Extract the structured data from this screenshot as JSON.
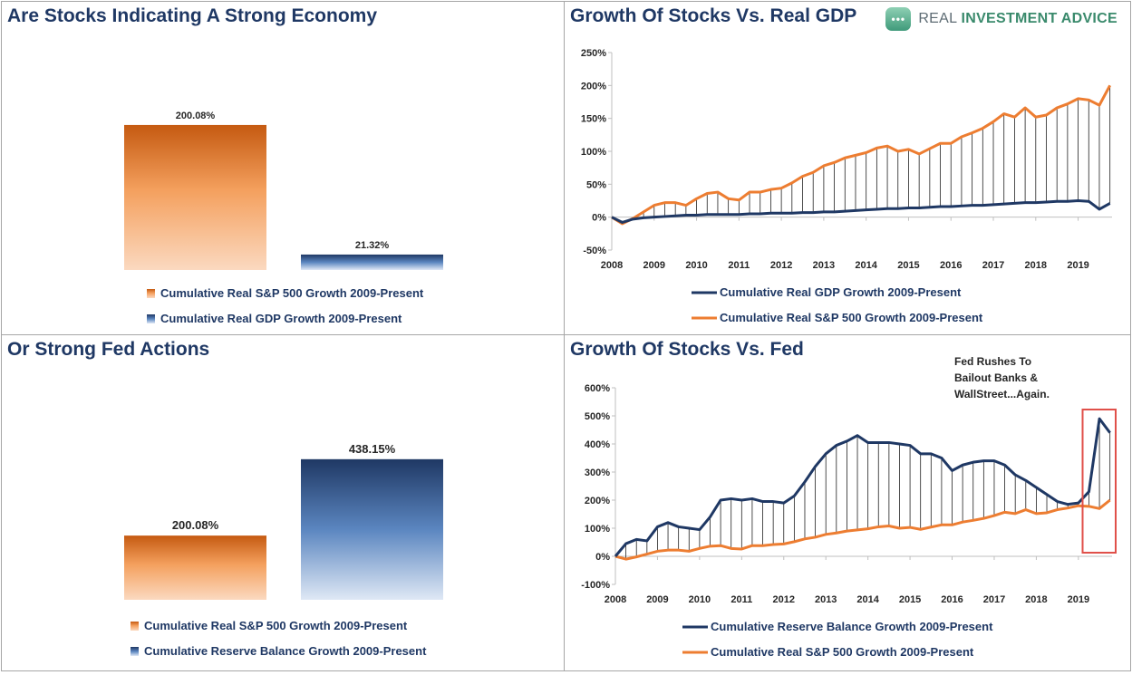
{
  "brand": {
    "word1": "REAL ",
    "word2": "INVESTMENT ADVICE",
    "icon": "chat-bubble-icon"
  },
  "colors": {
    "orange": "#ed7d31",
    "navy": "#1f3864",
    "annotation_box": "#e0504a"
  },
  "chart_data": [
    {
      "type": "bar",
      "title": "Are Stocks Indicating A Strong Economy",
      "categories": [
        "Cumulative Real S&P 500 Growth 2009-Present",
        "Cumulative Real GDP Growth 2009-Present"
      ],
      "values": [
        200.08,
        21.32
      ],
      "data_labels": [
        "200.08%",
        "21.32%"
      ],
      "legend": [
        "Cumulative Real S&P 500 Growth 2009-Present",
        "Cumulative Real GDP Growth 2009-Present"
      ],
      "legend_position": "bottom",
      "ylim": [
        0,
        220
      ]
    },
    {
      "type": "line",
      "title": "Growth Of Stocks Vs. Real GDP",
      "xlim": [
        2008,
        2019.8
      ],
      "ylim": [
        -50,
        250
      ],
      "yticks": [
        "-50%",
        "0%",
        "50%",
        "100%",
        "150%",
        "200%",
        "250%"
      ],
      "xticks": [
        "2008",
        "2009",
        "2010",
        "2011",
        "2012",
        "2013",
        "2014",
        "2015",
        "2016",
        "2017",
        "2018",
        "2019"
      ],
      "legend": [
        "Cumulative Real GDP Growth 2009-Present",
        "Cumulative Real S&P 500 Growth 2009-Present"
      ],
      "legend_position": "bottom",
      "x": [
        2008.0,
        2008.25,
        2008.5,
        2008.75,
        2009.0,
        2009.25,
        2009.5,
        2009.75,
        2010.0,
        2010.25,
        2010.5,
        2010.75,
        2011.0,
        2011.25,
        2011.5,
        2011.75,
        2012.0,
        2012.25,
        2012.5,
        2012.75,
        2013.0,
        2013.25,
        2013.5,
        2013.75,
        2014.0,
        2014.25,
        2014.5,
        2014.75,
        2015.0,
        2015.25,
        2015.5,
        2015.75,
        2016.0,
        2016.25,
        2016.5,
        2016.75,
        2017.0,
        2017.25,
        2017.5,
        2017.75,
        2018.0,
        2018.25,
        2018.5,
        2018.75,
        2019.0,
        2019.25,
        2019.5,
        2019.75
      ],
      "series": [
        {
          "values": [
            0,
            -8,
            -3,
            -1,
            0,
            1,
            2,
            3,
            3,
            4,
            4,
            4,
            4,
            5,
            5,
            6,
            6,
            6,
            7,
            7,
            8,
            8,
            9,
            10,
            11,
            12,
            13,
            13,
            14,
            14,
            15,
            16,
            16,
            17,
            18,
            18,
            19,
            20,
            21,
            22,
            22,
            23,
            24,
            24,
            25,
            24,
            12,
            21
          ]
        },
        {
          "values": [
            0,
            -10,
            -2,
            8,
            18,
            22,
            22,
            18,
            28,
            36,
            38,
            28,
            26,
            38,
            38,
            42,
            44,
            52,
            62,
            68,
            78,
            83,
            90,
            94,
            98,
            105,
            108,
            100,
            103,
            96,
            104,
            112,
            112,
            122,
            128,
            135,
            145,
            157,
            152,
            166,
            152,
            155,
            166,
            172,
            180,
            178,
            170,
            200
          ]
        }
      ]
    },
    {
      "type": "bar",
      "title": "Or Strong Fed Actions",
      "categories": [
        "Cumulative Real S&P 500 Growth 2009-Present",
        "Cumulative Reserve Balance Growth 2009-Present"
      ],
      "values": [
        200.08,
        438.15
      ],
      "data_labels": [
        "200.08%",
        "438.15%"
      ],
      "legend": [
        "Cumulative Real S&P 500 Growth 2009-Present",
        "Cumulative Reserve Balance Growth 2009-Present"
      ],
      "legend_position": "bottom",
      "ylim": [
        0,
        480
      ]
    },
    {
      "type": "line",
      "title": "Growth Of Stocks Vs. Fed",
      "xlim": [
        2008,
        2019.8
      ],
      "ylim": [
        -100,
        600
      ],
      "yticks": [
        "-100%",
        "0%",
        "100%",
        "200%",
        "300%",
        "400%",
        "500%",
        "600%"
      ],
      "xticks": [
        "2008",
        "2009",
        "2010",
        "2011",
        "2012",
        "2013",
        "2014",
        "2015",
        "2016",
        "2017",
        "2018",
        "2019"
      ],
      "legend": [
        "Cumulative Reserve Balance Growth 2009-Present",
        "Cumulative Real S&P 500 Growth 2009-Present"
      ],
      "legend_position": "bottom",
      "annotation": {
        "lines": [
          "Fed Rushes To",
          "Bailout Banks &",
          "WallStreet...Again."
        ],
        "box_x": [
          2019.1,
          2019.8
        ]
      },
      "x": [
        2008.0,
        2008.25,
        2008.5,
        2008.75,
        2009.0,
        2009.25,
        2009.5,
        2009.75,
        2010.0,
        2010.25,
        2010.5,
        2010.75,
        2011.0,
        2011.25,
        2011.5,
        2011.75,
        2012.0,
        2012.25,
        2012.5,
        2012.75,
        2013.0,
        2013.25,
        2013.5,
        2013.75,
        2014.0,
        2014.25,
        2014.5,
        2014.75,
        2015.0,
        2015.25,
        2015.5,
        2015.75,
        2016.0,
        2016.25,
        2016.5,
        2016.75,
        2017.0,
        2017.25,
        2017.5,
        2017.75,
        2018.0,
        2018.25,
        2018.5,
        2018.75,
        2019.0,
        2019.25,
        2019.5,
        2019.75
      ],
      "series": [
        {
          "values": [
            0,
            45,
            60,
            55,
            105,
            120,
            105,
            100,
            95,
            140,
            200,
            205,
            200,
            205,
            195,
            195,
            190,
            215,
            265,
            320,
            365,
            395,
            410,
            430,
            405,
            405,
            405,
            400,
            395,
            365,
            365,
            350,
            305,
            325,
            335,
            340,
            340,
            325,
            290,
            270,
            245,
            220,
            195,
            185,
            190,
            230,
            490,
            440
          ]
        },
        {
          "values": [
            0,
            -10,
            -2,
            8,
            18,
            22,
            22,
            18,
            28,
            36,
            38,
            28,
            26,
            38,
            38,
            42,
            44,
            52,
            62,
            68,
            78,
            83,
            90,
            94,
            98,
            105,
            108,
            100,
            103,
            96,
            104,
            112,
            112,
            122,
            128,
            135,
            145,
            157,
            152,
            166,
            152,
            155,
            166,
            172,
            180,
            178,
            170,
            200
          ]
        }
      ]
    }
  ]
}
